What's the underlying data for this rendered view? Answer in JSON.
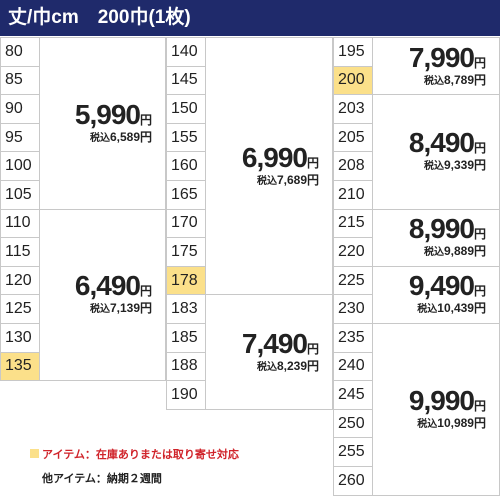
{
  "header": {
    "title": "丈/巾cm　200巾(1枚)"
  },
  "unit": "円",
  "tax_prefix": "税込",
  "columns": [
    {
      "groups": [
        {
          "sizes": [
            {
              "label": "80"
            },
            {
              "label": "85"
            },
            {
              "label": "90"
            },
            {
              "label": "95"
            },
            {
              "label": "100"
            },
            {
              "label": "105"
            }
          ],
          "price": "5,990",
          "tax": "6,589円"
        },
        {
          "sizes": [
            {
              "label": "110"
            },
            {
              "label": "115"
            },
            {
              "label": "120"
            },
            {
              "label": "125"
            },
            {
              "label": "130"
            },
            {
              "label": "135",
              "stock": true
            }
          ],
          "price": "6,490",
          "tax": "7,139円"
        }
      ]
    },
    {
      "groups": [
        {
          "sizes": [
            {
              "label": "140"
            },
            {
              "label": "145"
            },
            {
              "label": "150"
            },
            {
              "label": "155"
            },
            {
              "label": "160"
            },
            {
              "label": "165"
            },
            {
              "label": "170"
            },
            {
              "label": "175"
            },
            {
              "label": "178",
              "stock": true
            }
          ],
          "price": "6,990",
          "tax": "7,689円"
        },
        {
          "sizes": [
            {
              "label": "183"
            },
            {
              "label": "185"
            },
            {
              "label": "188"
            },
            {
              "label": "190"
            }
          ],
          "price": "7,490",
          "tax": "8,239円"
        }
      ]
    },
    {
      "groups": [
        {
          "sizes": [
            {
              "label": "195"
            },
            {
              "label": "200",
              "stock": true
            }
          ],
          "price": "7,990",
          "tax": "8,789円"
        },
        {
          "sizes": [
            {
              "label": "203"
            },
            {
              "label": "205"
            },
            {
              "label": "208"
            },
            {
              "label": "210"
            }
          ],
          "price": "8,490",
          "tax": "9,339円"
        },
        {
          "sizes": [
            {
              "label": "215"
            },
            {
              "label": "220"
            }
          ],
          "price": "8,990",
          "tax": "9,889円"
        },
        {
          "sizes": [
            {
              "label": "225"
            },
            {
              "label": "230"
            }
          ],
          "price": "9,490",
          "tax": "10,439円"
        },
        {
          "sizes": [
            {
              "label": "235"
            },
            {
              "label": "240"
            },
            {
              "label": "245"
            },
            {
              "label": "250"
            },
            {
              "label": "255"
            },
            {
              "label": "260"
            }
          ],
          "price": "9,990",
          "tax": "10,989円"
        }
      ]
    }
  ],
  "legend": {
    "stock": "アイテム：在庫ありまたは取り寄せ対応",
    "other": "他アイテム：納期２週間"
  }
}
